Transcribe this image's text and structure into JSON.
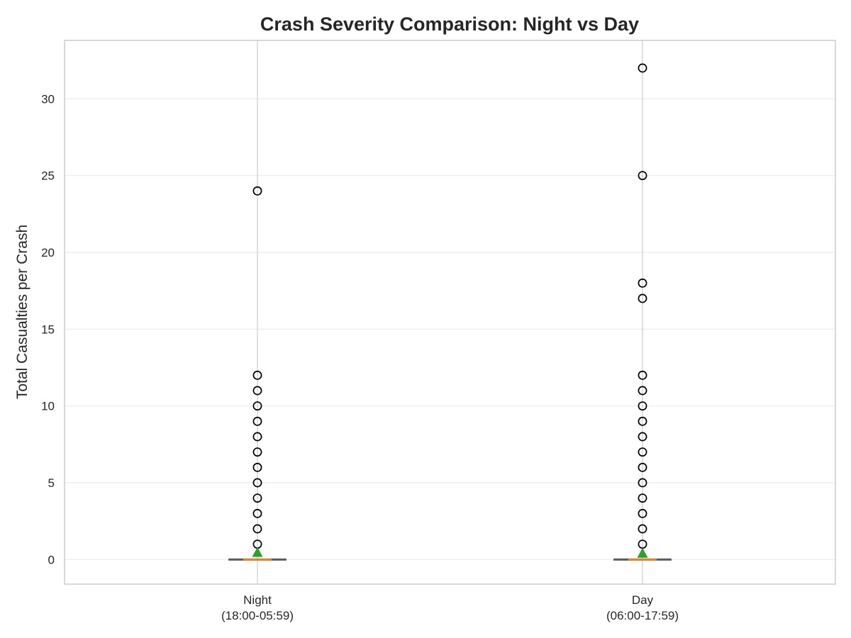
{
  "chart_data": {
    "type": "box",
    "title": "Crash Severity Comparison: Night vs Day",
    "xlabel": "",
    "ylabel": "Total Casualties per Crash",
    "ylim": [
      -1.6,
      33.8
    ],
    "yticks": [
      "0",
      "5",
      "10",
      "15",
      "20",
      "25",
      "30"
    ],
    "ytick_values": [
      0,
      5,
      10,
      15,
      20,
      25,
      30
    ],
    "grid": true,
    "categories": [
      {
        "line1": "Night",
        "line2": "(18:00-05:59)"
      },
      {
        "line1": "Day",
        "line2": "(06:00-17:59)"
      }
    ],
    "series": [
      {
        "q1": 0,
        "median": 0,
        "q3": 0,
        "whisker_low": 0,
        "whisker_high": 0,
        "mean": 0.4,
        "outliers": [
          1,
          2,
          3,
          4,
          5,
          6,
          7,
          8,
          9,
          10,
          11,
          12,
          24
        ]
      },
      {
        "q1": 0,
        "median": 0,
        "q3": 0,
        "whisker_low": 0,
        "whisker_high": 0,
        "mean": 0.35,
        "outliers": [
          1,
          2,
          3,
          4,
          5,
          6,
          7,
          8,
          9,
          10,
          11,
          12,
          17,
          18,
          25,
          32
        ]
      }
    ],
    "colors": {
      "median": "#ff7f0e",
      "mean": "#2ca02c",
      "box": "#5a5a5a",
      "outlier": "#000000",
      "grid": "#ebebeb",
      "frame": "#cccccc",
      "vgrid": "#cccccc"
    }
  }
}
